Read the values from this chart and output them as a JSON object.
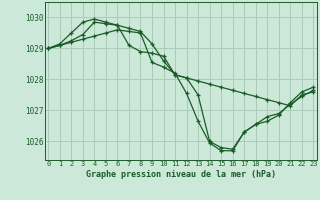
{
  "title": "Graphe pression niveau de la mer (hPa)",
  "bg_color": "#cce8d8",
  "line_color": "#1a5c28",
  "grid_color": "#aaccb8",
  "x_ticks": [
    0,
    1,
    2,
    3,
    4,
    5,
    6,
    7,
    8,
    9,
    10,
    11,
    12,
    13,
    14,
    15,
    16,
    17,
    18,
    19,
    20,
    21,
    22,
    23
  ],
  "y_ticks": [
    1026,
    1027,
    1028,
    1029,
    1030
  ],
  "ylim": [
    1025.4,
    1030.5
  ],
  "xlim": [
    -0.3,
    23.3
  ],
  "series": [
    [
      1029.0,
      1029.1,
      1029.25,
      1029.45,
      1029.85,
      1029.8,
      1029.75,
      1029.1,
      1028.9,
      1028.85,
      1028.75,
      1028.15,
      1028.05,
      1027.95,
      1027.85,
      1027.75,
      1027.65,
      1027.55,
      1027.45,
      1027.35,
      1027.25,
      1027.15,
      1027.5,
      1027.6
    ],
    [
      1029.0,
      1029.15,
      1029.5,
      1029.85,
      1029.95,
      1029.85,
      1029.75,
      1029.65,
      1029.55,
      1029.15,
      1028.6,
      1028.15,
      1028.05,
      1027.5,
      1026.0,
      1025.8,
      1025.75,
      1026.3,
      1026.55,
      1026.65,
      1026.85,
      1027.25,
      1027.6,
      1027.75
    ],
    [
      1029.0,
      1029.1,
      1029.2,
      1029.3,
      1029.4,
      1029.5,
      1029.6,
      1029.55,
      1029.5,
      1028.55,
      1028.4,
      1028.2,
      1027.55,
      1026.65,
      1025.95,
      1025.7,
      1025.7,
      1026.3,
      1026.55,
      1026.8,
      1026.9,
      1027.2,
      1027.45,
      1027.65
    ]
  ]
}
